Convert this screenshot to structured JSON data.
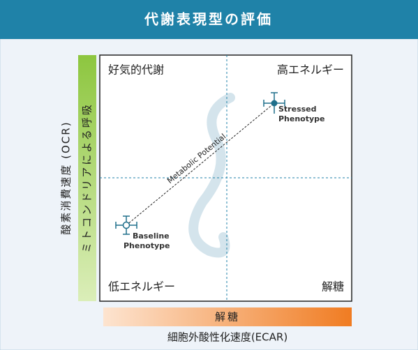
{
  "header": {
    "title": "代謝表現型の評価"
  },
  "plot": {
    "quadrants": {
      "top_left": "好気的代謝",
      "top_right": "高エネルギー",
      "bottom_left": "低エネルギー",
      "bottom_right": "解糖"
    },
    "diagonal_label": "Metabolic Potential",
    "points": [
      {
        "lines": [
          "Stressed",
          "Phenotype"
        ]
      },
      {
        "lines": [
          "Baseline",
          "Phenotype"
        ]
      }
    ]
  },
  "y_axis": {
    "label": "酸素消費速度 (OCR)",
    "band_label": "ミトコンドリアによる呼吸"
  },
  "x_axis": {
    "label": "細胞外酸性化速度(ECAR)",
    "band_label": "解糖"
  }
}
